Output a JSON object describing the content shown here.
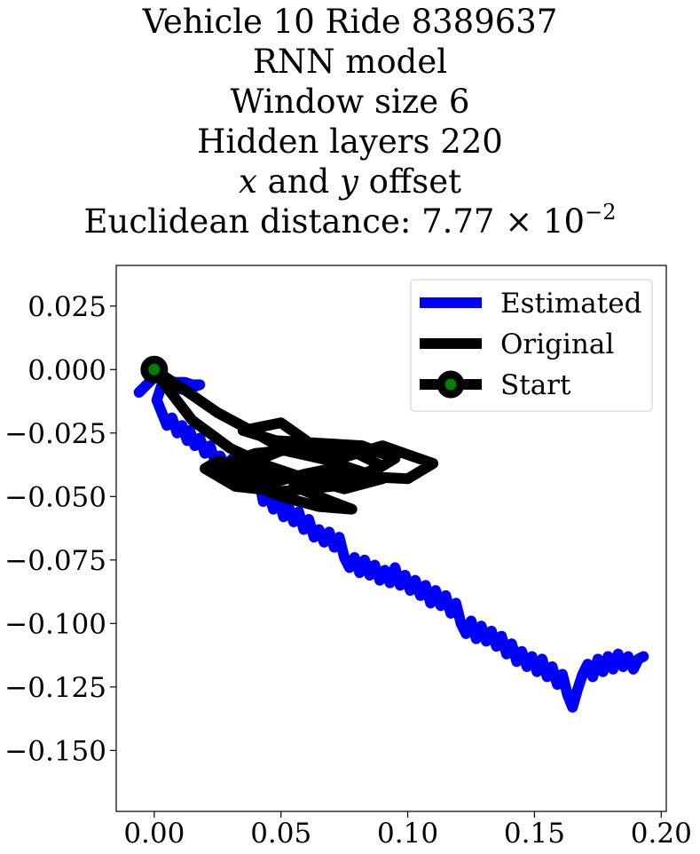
{
  "title": {
    "line1": "Vehicle 10 Ride 8389637",
    "line2": "RNN model",
    "line3": "Window size 6",
    "line4": "Hidden layers 220",
    "line5_x": "x",
    "line5_and": " and ",
    "line5_y": "y",
    "line5_rest": " offset",
    "line6_prefix": "Euclidean distance: ",
    "line6_mantissa": "7.77",
    "line6_times": " × 10",
    "line6_exp": "−2"
  },
  "chart_data": {
    "type": "line",
    "title": "Vehicle 10 Ride 8389637 RNN model Window size 6 Hidden layers 220 x and y offset Euclidean distance: 7.77×10^-2",
    "xlabel": "",
    "ylabel": "",
    "xlim": [
      -0.015,
      0.202
    ],
    "ylim": [
      -0.174,
      0.041
    ],
    "grid": false,
    "legend_position": "top-right",
    "x_ticks": [
      0.0,
      0.05,
      0.1,
      0.15,
      0.2
    ],
    "x_tick_labels": [
      "0.00",
      "0.05",
      "0.10",
      "0.15",
      "0.20"
    ],
    "y_ticks": [
      0.025,
      0.0,
      -0.025,
      -0.05,
      -0.075,
      -0.1,
      -0.125,
      -0.15
    ],
    "y_tick_labels": [
      "0.025",
      "0.000",
      "−0.025",
      "−0.050",
      "−0.075",
      "−0.100",
      "−0.125",
      "−0.150"
    ],
    "series": [
      {
        "name": "Estimated",
        "color": "#0000ff",
        "points": [
          [
            -0.006,
            -0.009
          ],
          [
            0.0,
            -0.003
          ],
          [
            0.002,
            -0.002
          ],
          [
            0.004,
            -0.004
          ],
          [
            0.008,
            -0.005
          ],
          [
            0.012,
            -0.005
          ],
          [
            0.015,
            -0.006
          ],
          [
            0.018,
            -0.006
          ],
          [
            0.012,
            -0.008
          ],
          [
            0.003,
            -0.006
          ],
          [
            0.001,
            -0.012
          ],
          [
            0.003,
            -0.017
          ],
          [
            0.005,
            -0.022
          ],
          [
            0.007,
            -0.019
          ],
          [
            0.009,
            -0.025
          ],
          [
            0.011,
            -0.022
          ],
          [
            0.013,
            -0.028
          ],
          [
            0.014,
            -0.024
          ],
          [
            0.016,
            -0.03
          ],
          [
            0.018,
            -0.027
          ],
          [
            0.02,
            -0.033
          ],
          [
            0.022,
            -0.03
          ],
          [
            0.024,
            -0.036
          ],
          [
            0.026,
            -0.034
          ],
          [
            0.028,
            -0.038
          ],
          [
            0.031,
            -0.035
          ],
          [
            0.033,
            -0.041
          ],
          [
            0.036,
            -0.038
          ],
          [
            0.038,
            -0.044
          ],
          [
            0.04,
            -0.04
          ],
          [
            0.042,
            -0.047
          ],
          [
            0.043,
            -0.052
          ],
          [
            0.045,
            -0.048
          ],
          [
            0.047,
            -0.055
          ],
          [
            0.049,
            -0.051
          ],
          [
            0.051,
            -0.058
          ],
          [
            0.053,
            -0.054
          ],
          [
            0.055,
            -0.06
          ],
          [
            0.057,
            -0.056
          ],
          [
            0.059,
            -0.063
          ],
          [
            0.061,
            -0.059
          ],
          [
            0.063,
            -0.066
          ],
          [
            0.065,
            -0.063
          ],
          [
            0.067,
            -0.068
          ],
          [
            0.069,
            -0.064
          ],
          [
            0.071,
            -0.07
          ],
          [
            0.073,
            -0.066
          ],
          [
            0.075,
            -0.074
          ],
          [
            0.077,
            -0.078
          ],
          [
            0.079,
            -0.074
          ],
          [
            0.081,
            -0.08
          ],
          [
            0.083,
            -0.075
          ],
          [
            0.085,
            -0.081
          ],
          [
            0.087,
            -0.077
          ],
          [
            0.089,
            -0.083
          ],
          [
            0.091,
            -0.079
          ],
          [
            0.093,
            -0.084
          ],
          [
            0.095,
            -0.078
          ],
          [
            0.097,
            -0.085
          ],
          [
            0.099,
            -0.081
          ],
          [
            0.101,
            -0.087
          ],
          [
            0.103,
            -0.083
          ],
          [
            0.105,
            -0.089
          ],
          [
            0.107,
            -0.085
          ],
          [
            0.109,
            -0.092
          ],
          [
            0.111,
            -0.087
          ],
          [
            0.113,
            -0.093
          ],
          [
            0.115,
            -0.089
          ],
          [
            0.117,
            -0.096
          ],
          [
            0.119,
            -0.092
          ],
          [
            0.121,
            -0.1
          ],
          [
            0.123,
            -0.104
          ],
          [
            0.125,
            -0.099
          ],
          [
            0.127,
            -0.106
          ],
          [
            0.129,
            -0.101
          ],
          [
            0.131,
            -0.107
          ],
          [
            0.133,
            -0.103
          ],
          [
            0.135,
            -0.109
          ],
          [
            0.137,
            -0.105
          ],
          [
            0.139,
            -0.112
          ],
          [
            0.141,
            -0.108
          ],
          [
            0.143,
            -0.115
          ],
          [
            0.145,
            -0.111
          ],
          [
            0.147,
            -0.117
          ],
          [
            0.149,
            -0.113
          ],
          [
            0.151,
            -0.119
          ],
          [
            0.153,
            -0.114
          ],
          [
            0.155,
            -0.121
          ],
          [
            0.157,
            -0.117
          ],
          [
            0.159,
            -0.124
          ],
          [
            0.161,
            -0.12
          ],
          [
            0.163,
            -0.128
          ],
          [
            0.165,
            -0.133
          ],
          [
            0.167,
            -0.126
          ],
          [
            0.169,
            -0.12
          ],
          [
            0.171,
            -0.116
          ],
          [
            0.173,
            -0.121
          ],
          [
            0.175,
            -0.114
          ],
          [
            0.177,
            -0.119
          ],
          [
            0.179,
            -0.113
          ],
          [
            0.181,
            -0.118
          ],
          [
            0.183,
            -0.112
          ],
          [
            0.185,
            -0.117
          ],
          [
            0.187,
            -0.113
          ],
          [
            0.189,
            -0.118
          ],
          [
            0.191,
            -0.114
          ],
          [
            0.193,
            -0.113
          ]
        ]
      },
      {
        "name": "Original",
        "color": "#000000",
        "points": [
          [
            0.0,
            0.0
          ],
          [
            0.012,
            -0.008
          ],
          [
            0.025,
            -0.017
          ],
          [
            0.04,
            -0.025
          ],
          [
            0.052,
            -0.032
          ],
          [
            0.07,
            -0.036
          ],
          [
            0.09,
            -0.03
          ],
          [
            0.11,
            -0.037
          ],
          [
            0.1,
            -0.043
          ],
          [
            0.08,
            -0.042
          ],
          [
            0.06,
            -0.044
          ],
          [
            0.042,
            -0.04
          ],
          [
            0.025,
            -0.036
          ],
          [
            0.02,
            -0.039
          ],
          [
            0.032,
            -0.046
          ],
          [
            0.05,
            -0.048
          ],
          [
            0.07,
            -0.046
          ],
          [
            0.09,
            -0.038
          ],
          [
            0.08,
            -0.033
          ],
          [
            0.06,
            -0.031
          ],
          [
            0.04,
            -0.033
          ],
          [
            0.025,
            -0.038
          ],
          [
            0.035,
            -0.044
          ],
          [
            0.05,
            -0.05
          ],
          [
            0.065,
            -0.054
          ],
          [
            0.078,
            -0.055
          ],
          [
            0.07,
            -0.052
          ],
          [
            0.055,
            -0.046
          ],
          [
            0.068,
            -0.043
          ],
          [
            0.085,
            -0.041
          ],
          [
            0.095,
            -0.035
          ],
          [
            0.082,
            -0.03
          ],
          [
            0.065,
            -0.029
          ],
          [
            0.048,
            -0.028
          ],
          [
            0.035,
            -0.024
          ],
          [
            0.05,
            -0.021
          ],
          [
            0.06,
            -0.028
          ],
          [
            0.045,
            -0.034
          ],
          [
            0.03,
            -0.04
          ],
          [
            0.045,
            -0.045
          ],
          [
            0.06,
            -0.041
          ],
          [
            0.075,
            -0.038
          ],
          [
            0.09,
            -0.043
          ],
          [
            0.075,
            -0.047
          ],
          [
            0.06,
            -0.043
          ],
          [
            0.045,
            -0.038
          ],
          [
            0.03,
            -0.031
          ],
          [
            0.015,
            -0.02
          ],
          [
            0.005,
            -0.007
          ],
          [
            0.0,
            0.0
          ]
        ]
      },
      {
        "name": "Start",
        "color": "#000000",
        "marker_face_color": "#008000",
        "points": [
          [
            0.0,
            0.0
          ]
        ]
      }
    ]
  }
}
